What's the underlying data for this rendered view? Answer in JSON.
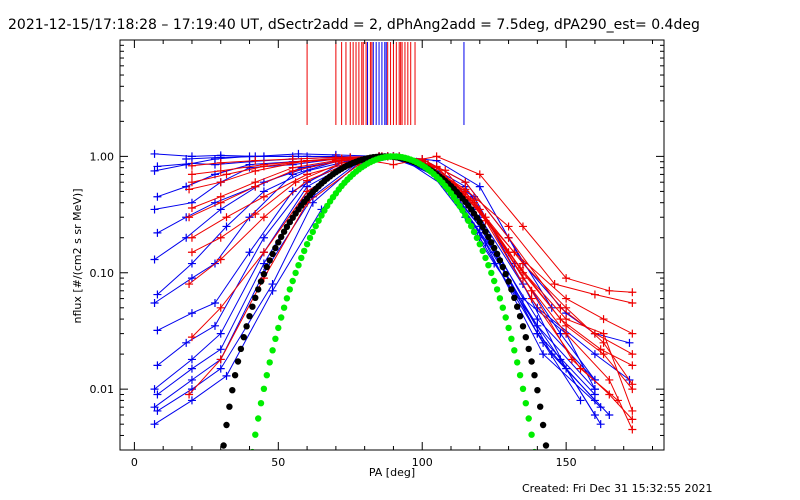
{
  "chart_data": {
    "type": "line",
    "title": "2021-12-15/17:18:28 – 17:19:40 UT, dSectr2add = 2, dPhAng2add = 7.5deg, dPA290_est=  0.4deg",
    "xlabel": "PA [deg]",
    "ylabel": "nflux [#/(cm2 s sr MeV)]",
    "xlim": [
      -5,
      184
    ],
    "ylim": [
      0.003,
      10
    ],
    "yscale": "log",
    "xticks": [
      0,
      50,
      100,
      150
    ],
    "xtick_labels": [
      "0",
      "50",
      "100",
      "150"
    ],
    "yticks": [
      0.01,
      0.1,
      1.0
    ],
    "ytick_labels": [
      "0.01",
      "0.10",
      "1.00"
    ],
    "grid": false,
    "footer": "Created: Fri Dec 31 15:32:55 2021",
    "colors": {
      "red": "#ee0000",
      "blue": "#0000ee",
      "black": "#000000",
      "green": "#00ee00"
    },
    "marker_lines": {
      "red": [
        60,
        70,
        72,
        73.5,
        75,
        76,
        77,
        78,
        79,
        79.5,
        80.5,
        82,
        82.5,
        88,
        89,
        90,
        91,
        92,
        92.5,
        93,
        94,
        95,
        96,
        97.5
      ],
      "blue": [
        81,
        83,
        84,
        85,
        86,
        87,
        87.5,
        114.5
      ]
    },
    "series": [
      {
        "color": "blue",
        "x": [
          7,
          20,
          30,
          42,
          57,
          70,
          85,
          98,
          110,
          118
        ],
        "y": [
          1.05,
          1.0,
          1.02,
          1.0,
          1.05,
          1.03,
          1.0,
          0.9,
          0.5,
          0.25
        ]
      },
      {
        "color": "blue",
        "x": [
          8,
          20,
          28,
          40,
          55,
          70,
          85,
          100,
          115,
          130,
          145
        ],
        "y": [
          0.82,
          0.87,
          0.85,
          0.9,
          0.95,
          0.98,
          1.0,
          0.95,
          0.6,
          0.2,
          0.05
        ]
      },
      {
        "color": "blue",
        "x": [
          7,
          18,
          28,
          40,
          55,
          70,
          85,
          100,
          115,
          132,
          148,
          160
        ],
        "y": [
          0.75,
          0.85,
          0.95,
          1.0,
          1.0,
          1.0,
          0.98,
          0.9,
          0.55,
          0.12,
          0.03,
          0.012
        ]
      },
      {
        "color": "blue",
        "x": [
          8,
          18,
          28,
          40,
          55,
          70,
          85,
          100,
          118,
          135,
          150,
          160
        ],
        "y": [
          0.45,
          0.55,
          0.7,
          0.85,
          0.9,
          0.95,
          1.0,
          0.85,
          0.45,
          0.08,
          0.015,
          0.006
        ]
      },
      {
        "color": "blue",
        "x": [
          7,
          20,
          30,
          40,
          55,
          70,
          85,
          100,
          115
        ],
        "y": [
          0.35,
          0.4,
          0.6,
          0.8,
          0.85,
          0.95,
          1.0,
          0.9,
          0.3
        ]
      },
      {
        "color": "blue",
        "x": [
          8,
          18,
          28,
          42,
          58,
          72,
          86,
          100,
          116,
          140,
          160
        ],
        "y": [
          0.22,
          0.3,
          0.4,
          0.55,
          0.8,
          0.92,
          1.0,
          0.88,
          0.4,
          0.03,
          0.009
        ]
      },
      {
        "color": "blue",
        "x": [
          7,
          18,
          30,
          45,
          60,
          75,
          88,
          102,
          118,
          135,
          150,
          160
        ],
        "y": [
          0.13,
          0.2,
          0.35,
          0.6,
          0.8,
          0.95,
          1.0,
          0.85,
          0.35,
          0.06,
          0.03,
          0.01
        ]
      },
      {
        "color": "blue",
        "x": [
          8,
          20,
          32,
          45,
          60,
          75,
          88,
          102,
          120,
          140,
          160,
          172
        ],
        "y": [
          0.065,
          0.12,
          0.25,
          0.5,
          0.75,
          0.92,
          1.0,
          0.8,
          0.3,
          0.05,
          0.02,
          0.012
        ]
      },
      {
        "color": "blue",
        "x": [
          7,
          20,
          28,
          40,
          55,
          70,
          88,
          105,
          120,
          140,
          160
        ],
        "y": [
          0.055,
          0.09,
          0.12,
          0.3,
          0.7,
          0.9,
          1.0,
          0.75,
          0.25,
          0.04,
          0.012
        ]
      },
      {
        "color": "blue",
        "x": [
          8,
          20,
          28,
          40,
          55,
          72,
          88,
          105,
          120
        ],
        "y": [
          0.032,
          0.045,
          0.055,
          0.15,
          0.5,
          0.88,
          1.0,
          0.7,
          0.22
        ]
      },
      {
        "color": "blue",
        "x": [
          8,
          18,
          28,
          45,
          60,
          75,
          90,
          105,
          120,
          140,
          155
        ],
        "y": [
          0.016,
          0.025,
          0.035,
          0.2,
          0.6,
          0.9,
          1.0,
          0.7,
          0.25,
          0.03,
          0.008
        ]
      },
      {
        "color": "blue",
        "x": [
          7,
          20,
          30,
          45,
          60,
          75,
          90,
          105,
          120,
          140,
          160
        ],
        "y": [
          0.01,
          0.018,
          0.03,
          0.15,
          0.55,
          0.88,
          1.0,
          0.72,
          0.22,
          0.035,
          0.01
        ]
      },
      {
        "color": "blue",
        "x": [
          8,
          20,
          30,
          45,
          60,
          75,
          90,
          105,
          120,
          142,
          160
        ],
        "y": [
          0.009,
          0.015,
          0.022,
          0.12,
          0.5,
          0.86,
          1.0,
          0.7,
          0.2,
          0.025,
          0.008
        ]
      },
      {
        "color": "blue",
        "x": [
          7,
          20,
          30,
          45,
          62,
          78,
          90,
          108,
          122,
          142,
          162
        ],
        "y": [
          0.007,
          0.012,
          0.018,
          0.1,
          0.45,
          0.9,
          1.0,
          0.62,
          0.18,
          0.02,
          0.007
        ]
      },
      {
        "color": "blue",
        "x": [
          8,
          20,
          30,
          48,
          62,
          78,
          92,
          108,
          125,
          145,
          165
        ],
        "y": [
          0.0065,
          0.01,
          0.015,
          0.08,
          0.4,
          0.88,
          1.0,
          0.6,
          0.15,
          0.02,
          0.006
        ]
      },
      {
        "color": "blue",
        "x": [
          7,
          20,
          32,
          48,
          65,
          80,
          92,
          108,
          125,
          148,
          162
        ],
        "y": [
          0.005,
          0.008,
          0.013,
          0.07,
          0.35,
          0.85,
          1.0,
          0.55,
          0.12,
          0.018,
          0.005
        ]
      },
      {
        "color": "blue",
        "x": [
          18,
          30,
          45,
          60,
          75,
          90,
          105,
          120,
          135,
          150,
          160,
          172
        ],
        "y": [
          0.95,
          0.98,
          1.0,
          1.0,
          0.98,
          1.0,
          0.92,
          0.55,
          0.12,
          0.045,
          0.03,
          0.025
        ]
      },
      {
        "color": "red",
        "x": [
          20,
          30,
          42,
          55,
          70,
          85,
          100,
          115,
          130,
          148,
          160,
          173
        ],
        "y": [
          0.83,
          0.88,
          0.92,
          0.95,
          0.98,
          1.0,
          0.95,
          0.6,
          0.2,
          0.05,
          0.03,
          0.02
        ]
      },
      {
        "color": "red",
        "x": [
          20,
          32,
          45,
          58,
          72,
          86,
          100,
          115,
          130,
          148,
          162,
          173
        ],
        "y": [
          0.6,
          0.7,
          0.82,
          0.9,
          0.95,
          1.0,
          0.92,
          0.5,
          0.15,
          0.04,
          0.022,
          0.016
        ]
      },
      {
        "color": "red",
        "x": [
          19,
          30,
          42,
          58,
          72,
          86,
          100,
          115,
          130,
          146,
          160,
          173
        ],
        "y": [
          0.52,
          0.6,
          0.75,
          0.9,
          0.96,
          1.0,
          0.9,
          0.52,
          0.25,
          0.08,
          0.065,
          0.055
        ]
      },
      {
        "color": "red",
        "x": [
          20,
          30,
          42,
          55,
          70,
          85,
          100,
          115,
          132,
          150,
          163,
          173
        ],
        "y": [
          0.36,
          0.45,
          0.6,
          0.8,
          0.92,
          1.0,
          0.88,
          0.45,
          0.15,
          0.06,
          0.04,
          0.03
        ]
      },
      {
        "color": "red",
        "x": [
          19,
          30,
          42,
          55,
          70,
          85,
          100,
          118,
          135,
          150,
          163,
          173
        ],
        "y": [
          0.3,
          0.4,
          0.55,
          0.75,
          0.9,
          1.0,
          0.85,
          0.4,
          0.12,
          0.05,
          0.025,
          0.011
        ]
      },
      {
        "color": "red",
        "x": [
          20,
          32,
          45,
          60,
          75,
          88,
          102,
          118,
          135,
          150,
          163,
          173
        ],
        "y": [
          0.2,
          0.3,
          0.45,
          0.7,
          0.88,
          1.0,
          0.85,
          0.4,
          0.1,
          0.035,
          0.02,
          0.01
        ]
      },
      {
        "color": "red",
        "x": [
          20,
          30,
          42,
          56,
          72,
          88,
          102,
          118,
          134,
          150,
          163,
          173
        ],
        "y": [
          0.15,
          0.2,
          0.32,
          0.6,
          0.88,
          1.0,
          0.86,
          0.42,
          0.11,
          0.04,
          0.03,
          0.0065
        ]
      },
      {
        "color": "red",
        "x": [
          19,
          30,
          45,
          60,
          75,
          90,
          105,
          120,
          135,
          150,
          165,
          173
        ],
        "y": [
          0.08,
          0.13,
          0.3,
          0.62,
          0.88,
          1.0,
          0.82,
          0.35,
          0.09,
          0.03,
          0.012,
          0.0045
        ]
      },
      {
        "color": "red",
        "x": [
          20,
          30,
          45,
          60,
          75,
          90,
          105,
          122,
          138,
          152,
          165,
          173
        ],
        "y": [
          0.028,
          0.05,
          0.15,
          0.5,
          0.85,
          1.0,
          0.8,
          0.3,
          0.07,
          0.018,
          0.009,
          0.0055
        ]
      },
      {
        "color": "red",
        "x": [
          19,
          30,
          45,
          60,
          78,
          92,
          108,
          122,
          138,
          155,
          168
        ],
        "y": [
          0.009,
          0.018,
          0.09,
          0.4,
          0.85,
          1.0,
          0.76,
          0.28,
          0.06,
          0.015,
          0.008
        ]
      },
      {
        "color": "red",
        "x": [
          20,
          30,
          45,
          60,
          75,
          90,
          105,
          120,
          135,
          150,
          165,
          173
        ],
        "y": [
          0.7,
          0.75,
          0.85,
          0.92,
          0.98,
          0.85,
          1.0,
          0.7,
          0.25,
          0.09,
          0.07,
          0.068
        ]
      }
    ],
    "model_curves": [
      {
        "color": "black",
        "center": 87,
        "halfwidth": 64,
        "exponent": 3.5,
        "x_from": 19,
        "x_to": 155
      },
      {
        "color": "green",
        "center": 90,
        "halfwidth": 65,
        "exponent": 6,
        "x_from": 24,
        "x_to": 157
      }
    ]
  }
}
